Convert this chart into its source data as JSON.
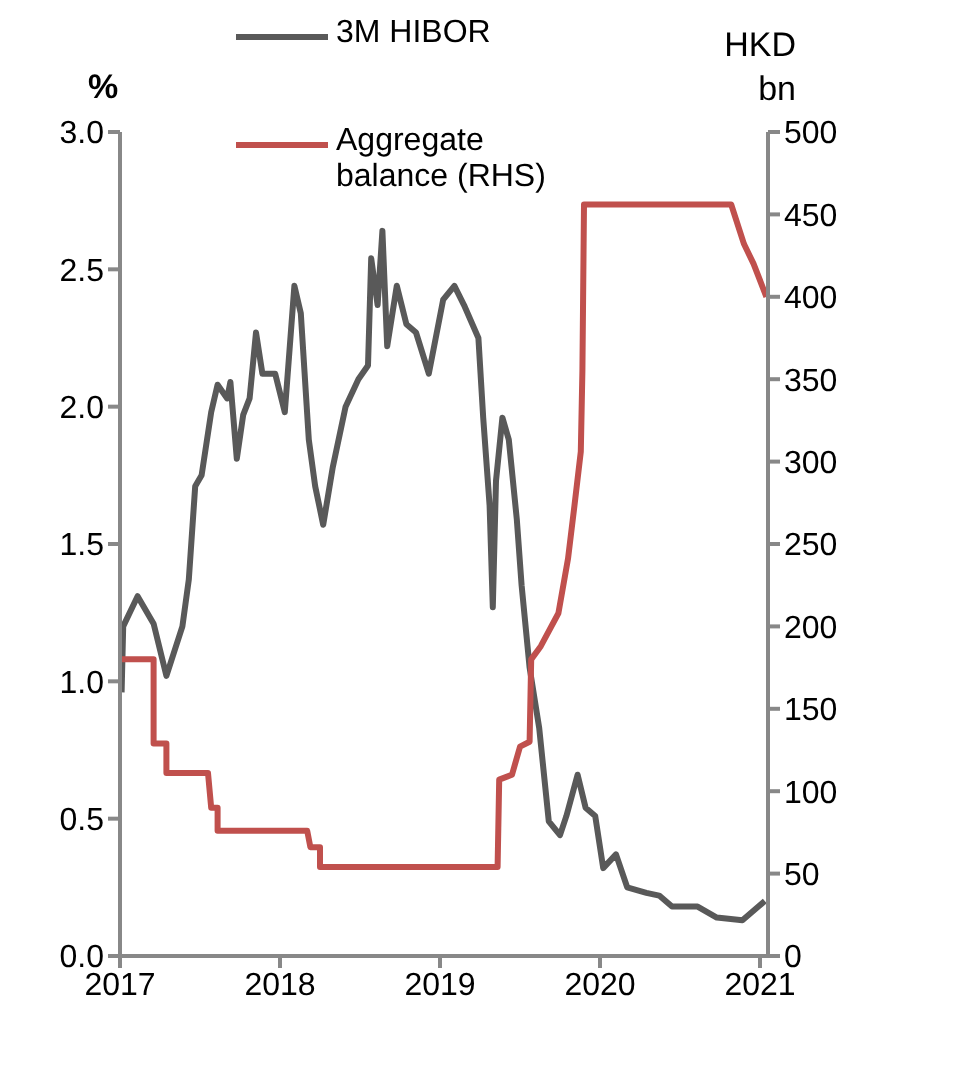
{
  "chart_data": {
    "type": "line",
    "ylabel": "%",
    "y2label": "HKD bn",
    "legend": "top",
    "xlim": [
      2017,
      2021.05
    ],
    "xticks": [
      2017,
      2018,
      2019,
      2020,
      2021
    ],
    "ylim": [
      0,
      3
    ],
    "yticks": [
      {
        "value": 0,
        "label": "0.0"
      },
      {
        "value": 0.5,
        "label": "0.5"
      },
      {
        "value": 1,
        "label": "1.0"
      },
      {
        "value": 1.5,
        "label": "1.5"
      },
      {
        "value": 2,
        "label": "2.0"
      },
      {
        "value": 2.5,
        "label": "2.5"
      },
      {
        "value": 3,
        "label": "3.0"
      }
    ],
    "y2lim": [
      0,
      500
    ],
    "y2ticks": [
      0,
      50,
      100,
      150,
      200,
      250,
      300,
      350,
      400,
      450,
      500
    ],
    "series": [
      {
        "name": "3M HIBOR",
        "color": "#595959",
        "x": [
          2017.01,
          2017.02,
          2017.11,
          2017.21,
          2017.29,
          2017.39,
          2017.43,
          2017.47,
          2017.51,
          2017.57,
          2017.61,
          2017.67,
          2017.69,
          2017.73,
          2017.77,
          2017.81,
          2017.85,
          2017.89,
          2017.97,
          2018.03,
          2018.09,
          2018.13,
          2018.18,
          2018.22,
          2018.27,
          2018.33,
          2018.41,
          2018.49,
          2018.55,
          2018.57,
          2018.61,
          2018.64,
          2018.67,
          2018.73,
          2018.79,
          2018.85,
          2018.93,
          2019.02,
          2019.09,
          2019.15,
          2019.24,
          2019.27,
          2019.31,
          2019.33,
          2019.35,
          2019.39,
          2019.43,
          2019.48,
          2019.51,
          2019.56,
          2019.62,
          2019.68,
          2019.75,
          2019.79,
          2019.86,
          2019.91,
          2019.97,
          2020.02,
          2020.1,
          2020.17,
          2020.29,
          2020.37,
          2020.45,
          2020.61,
          2020.73,
          2020.89,
          2020.99,
          2021.03
        ],
        "values": [
          0.96,
          1.2,
          1.31,
          1.21,
          1.02,
          1.2,
          1.37,
          1.71,
          1.75,
          1.98,
          2.08,
          2.03,
          2.09,
          1.81,
          1.97,
          2.03,
          2.27,
          2.12,
          2.12,
          1.98,
          2.44,
          2.34,
          1.88,
          1.71,
          1.57,
          1.78,
          2.0,
          2.1,
          2.15,
          2.54,
          2.37,
          2.64,
          2.22,
          2.44,
          2.3,
          2.27,
          2.12,
          2.39,
          2.44,
          2.37,
          2.25,
          1.96,
          1.64,
          1.27,
          1.73,
          1.96,
          1.88,
          1.59,
          1.35,
          1.05,
          0.83,
          0.49,
          0.44,
          0.51,
          0.66,
          0.54,
          0.51,
          0.32,
          0.37,
          0.25,
          0.23,
          0.22,
          0.18,
          0.18,
          0.14,
          0.13,
          0.18,
          0.2
        ]
      },
      {
        "name": "Aggregate balance (RHS)",
        "color": "#c0504d",
        "axis": "y2",
        "x": [
          2017,
          2017.21,
          2017.21,
          2017.29,
          2017.29,
          2017.55,
          2017.57,
          2017.61,
          2017.61,
          2018.17,
          2018.19,
          2018.25,
          2018.25,
          2019.36,
          2019.37,
          2019.45,
          2019.5,
          2019.56,
          2019.57,
          2019.63,
          2019.74,
          2019.8,
          2019.84,
          2019.88,
          2019.89,
          2019.9,
          2020.82,
          2020.9,
          2020.96,
          2021.04
        ],
        "values": [
          180,
          180,
          129,
          129,
          111,
          111,
          90,
          90,
          76,
          76,
          66,
          66,
          54,
          54,
          107,
          110,
          127,
          130,
          180,
          188,
          208,
          241,
          273,
          306,
          355,
          456,
          456,
          432,
          420,
          400
        ]
      }
    ]
  }
}
